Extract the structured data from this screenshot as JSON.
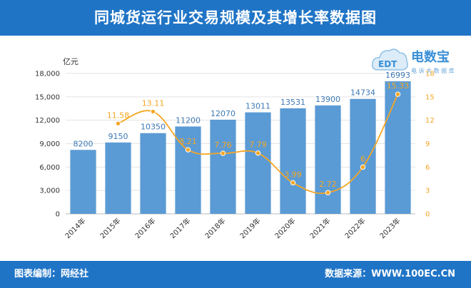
{
  "header": {
    "title": "同城货运行业交易规模及其增长率数据图"
  },
  "footer": {
    "left": "图表编制：网经社",
    "right": "数据来源：WWW.100EC.CN"
  },
  "logo": {
    "big": "电数宝",
    "small": "电 诉 大 数 据 库",
    "badge": "EDT"
  },
  "colors": {
    "bar": "#5b9bd5",
    "line": "#f5a623",
    "axis_left": "#333333",
    "axis_right": "#f5a623",
    "brand": "#1f74c6"
  },
  "chart_data": {
    "type": "bar",
    "categories": [
      "2014年",
      "2015年",
      "2016年",
      "2017年",
      "2018年",
      "2019年",
      "2020年",
      "2021年",
      "2022年",
      "2023年"
    ],
    "ylabel": "亿元",
    "ylim": [
      0,
      18000
    ],
    "yticks": [
      "0",
      "3,000",
      "6,000",
      "9,000",
      "12,000",
      "15,000",
      "18,000"
    ],
    "y2lim": [
      0,
      18
    ],
    "y2ticks": [
      "0",
      "3",
      "6",
      "9",
      "12",
      "15",
      "18"
    ],
    "series": [
      {
        "type": "bar",
        "axis": "left",
        "values": [
          8200,
          9150,
          10350,
          11200,
          12070,
          13011,
          13531,
          13900,
          14734,
          16993
        ]
      },
      {
        "type": "line",
        "axis": "right",
        "values": [
          null,
          11.58,
          13.11,
          8.21,
          7.76,
          7.79,
          3.99,
          2.72,
          6,
          15.33
        ]
      }
    ],
    "grid": true,
    "legend": "none"
  }
}
